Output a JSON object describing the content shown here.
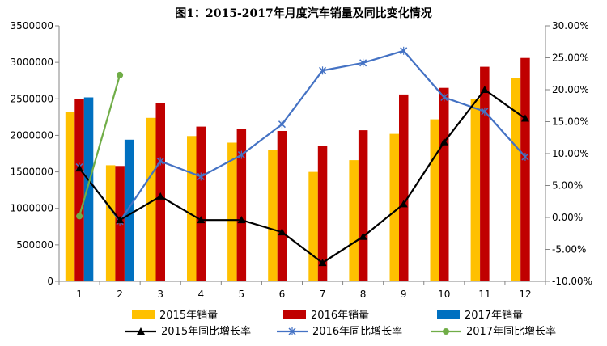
{
  "chart_data": {
    "type": "bar",
    "title": "图1：2015-2017年月度汽车销量及同比变化情况",
    "categories": [
      "1",
      "2",
      "3",
      "4",
      "5",
      "6",
      "7",
      "8",
      "9",
      "10",
      "11",
      "12"
    ],
    "left_axis": {
      "ylim": [
        0,
        3500000
      ],
      "ticks": [
        "0",
        "500000",
        "1000000",
        "1500000",
        "2000000",
        "2500000",
        "3000000",
        "3500000"
      ]
    },
    "right_axis": {
      "ylim": [
        -10,
        30
      ],
      "ticks": [
        "-10.00%",
        "-5.00%",
        "0.00%",
        "5.00%",
        "10.00%",
        "15.00%",
        "20.00%",
        "25.00%",
        "30.00%"
      ]
    },
    "grid": false,
    "legend_position": "bottom",
    "bar_series": [
      {
        "name": "2015年销量",
        "color": "#FFC000",
        "values": [
          2320000,
          1590000,
          2240000,
          1990000,
          1900000,
          1800000,
          1500000,
          1660000,
          2020000,
          2220000,
          2500000,
          2780000
        ]
      },
      {
        "name": "2016年销量",
        "color": "#C00000",
        "values": [
          2500000,
          1580000,
          2440000,
          2120000,
          2090000,
          2060000,
          1850000,
          2070000,
          2560000,
          2650000,
          2940000,
          3060000
        ]
      },
      {
        "name": "2017年销量",
        "color": "#0070C0",
        "values": [
          2520000,
          1940000
        ]
      }
    ],
    "line_series": [
      {
        "name": "2015年同比增长率",
        "color": "#000000",
        "marker": "triangle",
        "values": [
          7.7,
          -0.4,
          3.3,
          -0.4,
          -0.4,
          -2.3,
          -7.1,
          -3.0,
          2.1,
          11.8,
          20.0,
          15.5
        ]
      },
      {
        "name": "2016年同比增长率",
        "color": "#4472C4",
        "marker": "x",
        "values": [
          7.9,
          -0.6,
          8.8,
          6.4,
          9.8,
          14.6,
          23.0,
          24.2,
          26.1,
          18.8,
          16.6,
          9.5
        ]
      },
      {
        "name": "2017年同比增长率",
        "color": "#70AD47",
        "marker": "circle",
        "values": [
          0.2,
          22.3
        ]
      }
    ]
  }
}
